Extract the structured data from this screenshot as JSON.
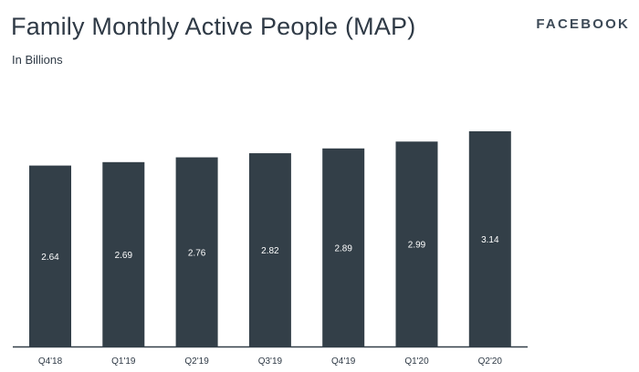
{
  "header": {
    "title": "Family Monthly Active People (MAP)",
    "subtitle": "In Billions",
    "brand": "FACEBOOK"
  },
  "chart_data": {
    "type": "bar",
    "title": "Family Monthly Active People (MAP)",
    "subtitle": "In Billions",
    "categories": [
      "Q4'18",
      "Q1'19",
      "Q2'19",
      "Q3'19",
      "Q4'19",
      "Q1'20",
      "Q2'20"
    ],
    "values": [
      2.64,
      2.69,
      2.76,
      2.82,
      2.89,
      2.99,
      3.14
    ],
    "value_labels": [
      "2.64",
      "2.69",
      "2.76",
      "2.82",
      "2.89",
      "2.99",
      "3.14"
    ],
    "xlabel": "",
    "ylabel": "",
    "ylim": [
      0,
      3.14
    ],
    "grid": false,
    "legend": "none",
    "bar_color": "#333f48",
    "axis_color": "#333f48"
  }
}
